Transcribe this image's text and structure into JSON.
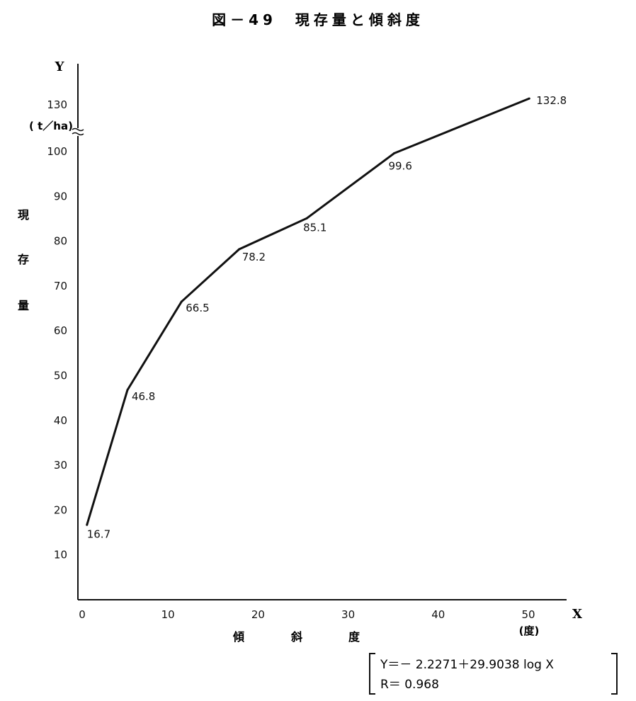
{
  "chart_data": {
    "type": "line",
    "title": "図－49　現存量と傾斜度",
    "x_axis_letter": "X",
    "y_axis_letter": "Y",
    "xlabel_chars": [
      "傾",
      "斜",
      "度"
    ],
    "x_unit": "(度)",
    "ylabel_chars": [
      "現",
      "存",
      "量"
    ],
    "y_unit": "( t／ha)",
    "x_ticks": [
      "0",
      "10",
      "20",
      "30",
      "40",
      "50"
    ],
    "y_ticks": [
      "10",
      "20",
      "30",
      "40",
      "50",
      "60",
      "70",
      "80",
      "90",
      "100",
      "130"
    ],
    "xlim": [
      0,
      55
    ],
    "ylim": [
      0,
      105
    ],
    "y_axis_break": {
      "below": 100,
      "above": 130
    },
    "grid": false,
    "legend": "none",
    "series": [
      {
        "x": [
          1,
          5.5,
          11.5,
          17.9,
          25.4,
          35.1,
          50.1
        ],
        "y": [
          16.7,
          46.8,
          66.5,
          78.2,
          85.1,
          99.6,
          132.8
        ],
        "labels": [
          "16.7",
          "46.8",
          "66.5",
          "78.2",
          "85.1",
          "99.6",
          "132.8"
        ]
      }
    ],
    "formula": {
      "line1": "Y＝－ 2.2271＋29.9038 log  X",
      "line2": "R＝ 0.968"
    }
  }
}
